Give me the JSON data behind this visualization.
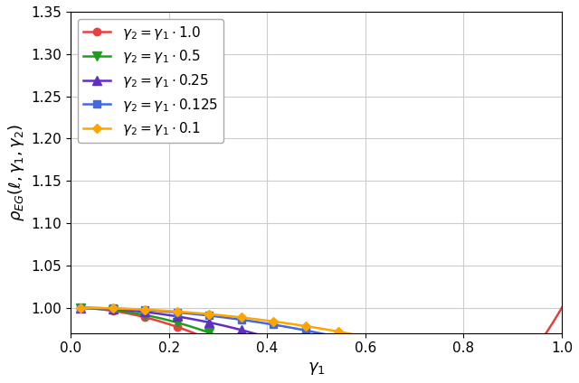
{
  "title": "",
  "xlabel": "$\\gamma_1$",
  "ylabel": "$\\rho_{EG}(\\ell, \\gamma_1, \\gamma_2)$",
  "xlim": [
    0.0,
    1.0
  ],
  "ylim": [
    0.97,
    1.35
  ],
  "yticks": [
    1.0,
    1.05,
    1.1,
    1.15,
    1.2,
    1.25,
    1.3,
    1.35
  ],
  "xticks": [
    0.0,
    0.2,
    0.4,
    0.6,
    0.8,
    1.0
  ],
  "series": [
    {
      "label": "$\\gamma_2 = \\gamma_1 \\cdot 1.0$",
      "alpha2": 1.0,
      "color": "#e84040",
      "marker": "o",
      "markersize": 6
    },
    {
      "label": "$\\gamma_2 = \\gamma_1 \\cdot 0.5$",
      "alpha2": 0.5,
      "color": "#1ca01c",
      "marker": "v",
      "markersize": 7
    },
    {
      "label": "$\\gamma_2 = \\gamma_1 \\cdot 0.25$",
      "alpha2": 0.25,
      "color": "#6030c0",
      "marker": "^",
      "markersize": 7
    },
    {
      "label": "$\\gamma_2 = \\gamma_1 \\cdot 0.125$",
      "alpha2": 0.125,
      "color": "#4169e1",
      "marker": "s",
      "markersize": 6
    },
    {
      "label": "$\\gamma_2 = \\gamma_1 \\cdot 0.1$",
      "alpha2": 0.1,
      "color": "#ffa500",
      "marker": "D",
      "markersize": 5
    }
  ],
  "ell": 1.0,
  "n_points": 300,
  "marker_indices": [
    4,
    19,
    34,
    49,
    64,
    79,
    94,
    109,
    124,
    139,
    154,
    169,
    184,
    199,
    214,
    229,
    244,
    259,
    274,
    289
  ],
  "background_color": "#ffffff",
  "grid_color": "#cccccc",
  "legend_fontsize": 11,
  "axis_fontsize": 13,
  "tick_fontsize": 11
}
